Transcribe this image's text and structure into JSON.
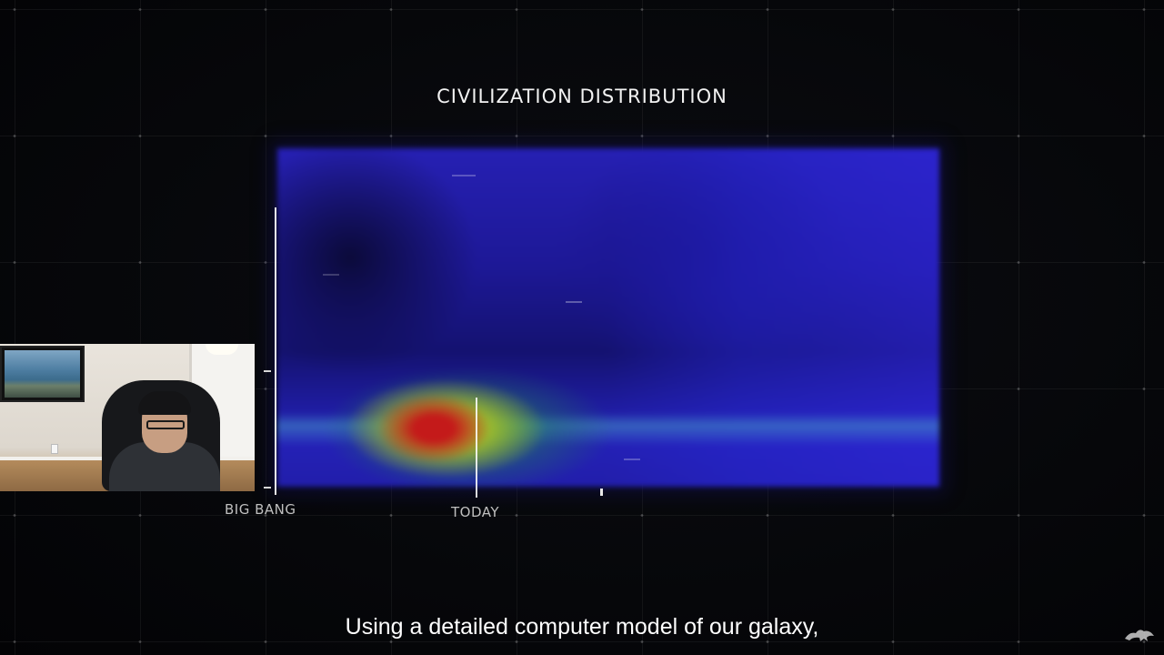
{
  "video": {
    "title": "CIVILIZATION DISTRIBUTION",
    "axis_labels": {
      "start": "BIG BANG",
      "marker": "TODAY"
    },
    "subtitle": "Using a detailed computer model of our galaxy,",
    "colors": {
      "background": "#050507",
      "axis": "#e8e8e8",
      "heatmap_low": "#2620b3",
      "heatmap_mid": "#28aa3c",
      "heatmap_high": "#c41a1a",
      "text": "#f2f2f2"
    },
    "icons": {
      "channel_logo": "dragon-logo-icon"
    }
  }
}
